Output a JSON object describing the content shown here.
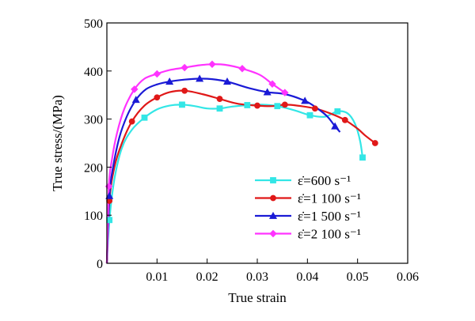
{
  "chart_data": {
    "type": "line",
    "title": "",
    "xlabel": "True strain",
    "ylabel": "True stress/(MPa)",
    "xlim": [
      0,
      0.06
    ],
    "ylim": [
      0,
      500
    ],
    "x_ticks": [
      "0.01",
      "0.02",
      "0.03",
      "0.04",
      "0.05",
      "0.06"
    ],
    "y_ticks": [
      "0",
      "100",
      "200",
      "300",
      "400",
      "500"
    ],
    "grid": false,
    "legend_position": "bottom-right",
    "series": [
      {
        "name": "ε̇=600 s⁻¹",
        "color": "#33e6e6",
        "marker": "square",
        "points": [
          [
            0.0,
            0
          ],
          [
            0.0005,
            90
          ],
          [
            0.0015,
            175
          ],
          [
            0.003,
            240
          ],
          [
            0.005,
            278
          ],
          [
            0.0075,
            303
          ],
          [
            0.01,
            320
          ],
          [
            0.0125,
            328
          ],
          [
            0.015,
            330
          ],
          [
            0.0175,
            327
          ],
          [
            0.02,
            322
          ],
          [
            0.0225,
            322
          ],
          [
            0.025,
            326
          ],
          [
            0.028,
            329
          ],
          [
            0.031,
            330
          ],
          [
            0.034,
            327
          ],
          [
            0.0375,
            318
          ],
          [
            0.0405,
            308
          ],
          [
            0.0435,
            305
          ],
          [
            0.046,
            316
          ],
          [
            0.048,
            312
          ],
          [
            0.0495,
            290
          ],
          [
            0.0505,
            255
          ],
          [
            0.051,
            220
          ]
        ]
      },
      {
        "name": "ε̇=1 100 s⁻¹",
        "color": "#e01818",
        "marker": "circle",
        "points": [
          [
            0.0,
            0
          ],
          [
            0.0005,
            130
          ],
          [
            0.0015,
            200
          ],
          [
            0.003,
            250
          ],
          [
            0.005,
            295
          ],
          [
            0.0075,
            328
          ],
          [
            0.01,
            345
          ],
          [
            0.0125,
            356
          ],
          [
            0.0155,
            359
          ],
          [
            0.019,
            352
          ],
          [
            0.0225,
            342
          ],
          [
            0.026,
            332
          ],
          [
            0.03,
            328
          ],
          [
            0.033,
            327
          ],
          [
            0.0355,
            330
          ],
          [
            0.038,
            328
          ],
          [
            0.0415,
            322
          ],
          [
            0.0445,
            312
          ],
          [
            0.0475,
            298
          ],
          [
            0.05,
            280
          ],
          [
            0.0515,
            266
          ],
          [
            0.0535,
            250
          ]
        ]
      },
      {
        "name": "ε̇=1 500 s⁻¹",
        "color": "#1a1ad6",
        "marker": "triangle",
        "points": [
          [
            0.0,
            0
          ],
          [
            0.0005,
            140
          ],
          [
            0.0012,
            198
          ],
          [
            0.0025,
            262
          ],
          [
            0.004,
            306
          ],
          [
            0.0058,
            340
          ],
          [
            0.0078,
            362
          ],
          [
            0.01,
            372
          ],
          [
            0.0125,
            378
          ],
          [
            0.0155,
            382
          ],
          [
            0.0185,
            384
          ],
          [
            0.021,
            383
          ],
          [
            0.024,
            378
          ],
          [
            0.0285,
            364
          ],
          [
            0.032,
            356
          ],
          [
            0.0355,
            352
          ],
          [
            0.0395,
            338
          ],
          [
            0.042,
            322
          ],
          [
            0.044,
            305
          ],
          [
            0.0455,
            285
          ],
          [
            0.0465,
            273
          ]
        ]
      },
      {
        "name": "ε̇=2 100 s⁻¹",
        "color": "#ff33ff",
        "marker": "diamond",
        "points": [
          [
            0.0,
            0
          ],
          [
            0.0004,
            160
          ],
          [
            0.001,
            215
          ],
          [
            0.002,
            270
          ],
          [
            0.0035,
            322
          ],
          [
            0.0055,
            362
          ],
          [
            0.0075,
            384
          ],
          [
            0.01,
            394
          ],
          [
            0.0125,
            402
          ],
          [
            0.0155,
            407
          ],
          [
            0.0185,
            412
          ],
          [
            0.021,
            414
          ],
          [
            0.0235,
            413
          ],
          [
            0.027,
            405
          ],
          [
            0.0305,
            392
          ],
          [
            0.033,
            373
          ],
          [
            0.0355,
            355
          ]
        ]
      }
    ]
  }
}
